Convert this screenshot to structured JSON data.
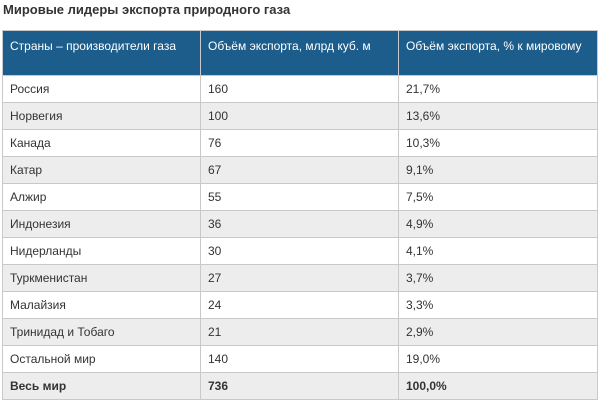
{
  "title": "Мировые лидеры экспорта природного газа",
  "table": {
    "headers": [
      "Страны – производители газа",
      "Объём экспорта, млрд куб. м",
      "Объём экспорта, % к мировому"
    ],
    "rows": [
      {
        "country": "Россия",
        "volume": "160",
        "share": "21,7%"
      },
      {
        "country": "Норвегия",
        "volume": "100",
        "share": "13,6%"
      },
      {
        "country": "Канада",
        "volume": "76",
        "share": "10,3%"
      },
      {
        "country": "Катар",
        "volume": "67",
        "share": "9,1%"
      },
      {
        "country": "Алжир",
        "volume": "55",
        "share": "7,5%"
      },
      {
        "country": "Индонезия",
        "volume": "36",
        "share": "4,9%"
      },
      {
        "country": "Нидерланды",
        "volume": "30",
        "share": "4,1%"
      },
      {
        "country": "Туркменистан",
        "volume": "27",
        "share": "3,7%"
      },
      {
        "country": "Малайзия",
        "volume": "24",
        "share": "3,3%"
      },
      {
        "country": "Тринидад и Тобаго",
        "volume": "21",
        "share": "2,9%"
      },
      {
        "country": "Остальной мир",
        "volume": "140",
        "share": "19,0%"
      }
    ],
    "total": {
      "country": "Весь мир",
      "volume": "736",
      "share": "100,0%"
    }
  },
  "colors": {
    "header_bg": "#1d5d8c",
    "header_text": "#ffffff",
    "stripe": "#ededed",
    "border": "#c9c9c9",
    "text": "#333333"
  }
}
